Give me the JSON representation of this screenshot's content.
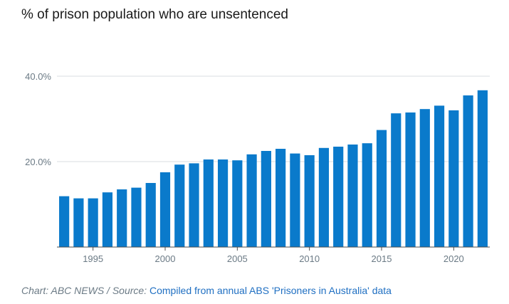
{
  "chart_data": {
    "type": "bar",
    "title": "% of prison population who are unsentenced",
    "xlabel": "",
    "ylabel": "",
    "x": [
      1993,
      1994,
      1995,
      1996,
      1997,
      1998,
      1999,
      2000,
      2001,
      2002,
      2003,
      2004,
      2005,
      2006,
      2007,
      2008,
      2009,
      2010,
      2011,
      2012,
      2013,
      2014,
      2015,
      2016,
      2017,
      2018,
      2019,
      2020,
      2021,
      2022
    ],
    "values": [
      11.9,
      11.4,
      11.4,
      12.8,
      13.5,
      13.9,
      15.0,
      17.5,
      19.3,
      19.6,
      20.5,
      20.5,
      20.3,
      21.7,
      22.5,
      23.0,
      21.9,
      21.5,
      23.2,
      23.5,
      24.0,
      24.3,
      27.4,
      31.3,
      31.5,
      32.3,
      33.1,
      32.0,
      35.5,
      36.7
    ],
    "ylim": [
      0,
      40
    ],
    "y_ticks": [
      {
        "value": 20,
        "label": "20.0%"
      },
      {
        "value": 40,
        "label": "40.0%"
      }
    ],
    "x_ticks": [
      1995,
      2000,
      2005,
      2010,
      2015,
      2020
    ],
    "bar_color": "#0a7acb",
    "gridline_color": "#d9dde0",
    "axis_color": "#4d4d4d"
  },
  "footer": {
    "prefix": "Chart: ABC NEWS / Source:",
    "source_link": "Compiled from annual ABS 'Prisoners in Australia' data"
  }
}
